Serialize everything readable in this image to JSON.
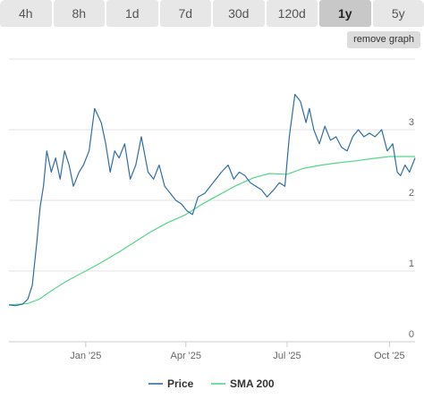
{
  "tabs": [
    {
      "label": "4h",
      "active": false
    },
    {
      "label": "8h",
      "active": false
    },
    {
      "label": "1d",
      "active": false
    },
    {
      "label": "7d",
      "active": false
    },
    {
      "label": "30d",
      "active": false
    },
    {
      "label": "120d",
      "active": false
    },
    {
      "label": "1y",
      "active": true
    },
    {
      "label": "5y",
      "active": false
    }
  ],
  "remove_graph_label": "remove graph",
  "colors": {
    "price": "#2f6ea3",
    "sma": "#55d688"
  },
  "chart_data": {
    "type": "line",
    "title": "",
    "xlabel": "",
    "ylabel": "",
    "x_range": [
      "2024-10-24",
      "2025-10-24"
    ],
    "ylim": [
      0,
      4
    ],
    "y_ticks": [
      0,
      1,
      2,
      3
    ],
    "x_ticks": [
      {
        "date": "2025-01-01",
        "label": "Jan '25"
      },
      {
        "date": "2025-04-01",
        "label": "Apr '25"
      },
      {
        "date": "2025-07-01",
        "label": "Jul '25"
      },
      {
        "date": "2025-10-01",
        "label": "Oct '25"
      }
    ],
    "grid": true,
    "legend_position": "bottom-center",
    "series": [
      {
        "name": "Price",
        "x": [
          "2024-10-24",
          "2024-10-30",
          "2024-11-05",
          "2024-11-10",
          "2024-11-14",
          "2024-11-18",
          "2024-11-21",
          "2024-11-24",
          "2024-11-27",
          "2024-12-01",
          "2024-12-05",
          "2024-12-09",
          "2024-12-13",
          "2024-12-17",
          "2024-12-21",
          "2024-12-26",
          "2024-12-30",
          "2025-01-04",
          "2025-01-09",
          "2025-01-12",
          "2025-01-15",
          "2025-01-19",
          "2025-01-23",
          "2025-01-27",
          "2025-01-31",
          "2025-02-05",
          "2025-02-10",
          "2025-02-15",
          "2025-02-20",
          "2025-02-26",
          "2025-03-03",
          "2025-03-08",
          "2025-03-13",
          "2025-03-18",
          "2025-03-23",
          "2025-03-28",
          "2025-04-02",
          "2025-04-07",
          "2025-04-12",
          "2025-04-18",
          "2025-04-23",
          "2025-04-28",
          "2025-05-03",
          "2025-05-09",
          "2025-05-14",
          "2025-05-19",
          "2025-05-24",
          "2025-05-29",
          "2025-06-03",
          "2025-06-08",
          "2025-06-13",
          "2025-06-19",
          "2025-06-24",
          "2025-06-29",
          "2025-07-03",
          "2025-07-08",
          "2025-07-13",
          "2025-07-18",
          "2025-07-21",
          "2025-07-25",
          "2025-07-30",
          "2025-08-04",
          "2025-08-09",
          "2025-08-14",
          "2025-08-19",
          "2025-08-24",
          "2025-08-29",
          "2025-09-03",
          "2025-09-08",
          "2025-09-13",
          "2025-09-18",
          "2025-09-24",
          "2025-09-29",
          "2025-10-04",
          "2025-10-08",
          "2025-10-11",
          "2025-10-15",
          "2025-10-19",
          "2025-10-24"
        ],
        "y": [
          0.52,
          0.51,
          0.53,
          0.6,
          0.8,
          1.4,
          1.9,
          2.2,
          2.7,
          2.4,
          2.6,
          2.3,
          2.7,
          2.5,
          2.2,
          2.4,
          2.5,
          2.7,
          3.3,
          3.2,
          3.1,
          2.8,
          2.4,
          2.7,
          2.6,
          2.8,
          2.3,
          2.5,
          2.9,
          2.4,
          2.3,
          2.5,
          2.2,
          2.1,
          2.0,
          1.95,
          1.85,
          1.8,
          2.05,
          2.1,
          2.2,
          2.3,
          2.4,
          2.5,
          2.3,
          2.4,
          2.35,
          2.25,
          2.2,
          2.15,
          2.05,
          2.15,
          2.25,
          2.2,
          2.9,
          3.5,
          3.4,
          3.1,
          3.3,
          3.0,
          2.8,
          3.05,
          2.85,
          2.9,
          2.75,
          2.7,
          2.9,
          3.0,
          2.9,
          2.95,
          2.9,
          3.0,
          2.7,
          2.8,
          2.4,
          2.35,
          2.5,
          2.4,
          2.6
        ]
      },
      {
        "name": "SMA 200",
        "x": [
          "2024-10-24",
          "2024-11-10",
          "2024-11-20",
          "2024-12-01",
          "2024-12-15",
          "2025-01-01",
          "2025-01-15",
          "2025-02-01",
          "2025-02-15",
          "2025-03-01",
          "2025-03-15",
          "2025-04-01",
          "2025-04-15",
          "2025-05-01",
          "2025-05-15",
          "2025-06-01",
          "2025-06-15",
          "2025-07-01",
          "2025-07-15",
          "2025-08-01",
          "2025-08-15",
          "2025-09-01",
          "2025-09-15",
          "2025-10-01",
          "2025-10-24"
        ],
        "y": [
          0.52,
          0.54,
          0.6,
          0.72,
          0.86,
          1.0,
          1.12,
          1.28,
          1.42,
          1.56,
          1.68,
          1.8,
          1.94,
          2.08,
          2.2,
          2.32,
          2.38,
          2.37,
          2.45,
          2.5,
          2.53,
          2.56,
          2.59,
          2.62,
          2.62
        ]
      }
    ]
  }
}
